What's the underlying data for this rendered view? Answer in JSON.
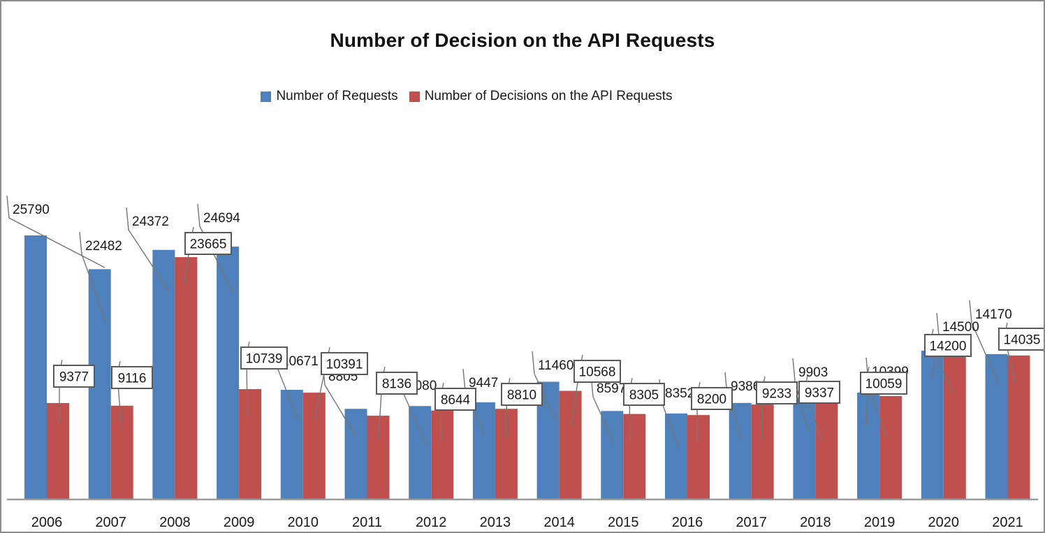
{
  "title": "Number of Decision on the API Requests",
  "legend": [
    {
      "label": "Number of Requests",
      "color": "#4e81bc",
      "swatch": "blue-square"
    },
    {
      "label": "Number of Decisions on the API Requests",
      "color": "#bf504d",
      "swatch": "red-square"
    }
  ],
  "colors": {
    "requests_bar": "#4e81bc",
    "decisions_bar": "#bf504d",
    "axis_line": "#9b9b9b",
    "leader_line": "#757575",
    "label_box_border": "#595959",
    "label_box_fill": "#ffffff",
    "text": "#1a1a1a",
    "frame_border": "#8c8c8c"
  },
  "chart_data": {
    "type": "bar",
    "title": "Number of Decision on the API Requests",
    "categories": [
      "2006",
      "2007",
      "2008",
      "2009",
      "2010",
      "2011",
      "2012",
      "2013",
      "2014",
      "2015",
      "2016",
      "2017",
      "2018",
      "2019",
      "2020",
      "2021"
    ],
    "series": [
      {
        "name": "Number of Requests",
        "color": "#4e81bc",
        "label_style": "plain",
        "values": [
          25790,
          22482,
          24372,
          24694,
          10671,
          8805,
          9080,
          9447,
          11460,
          8597,
          8352,
          9386,
          9903,
          10399,
          14500,
          14170
        ]
      },
      {
        "name": "Number of Decisions on the API Requests",
        "color": "#bf504d",
        "label_style": "boxed-callout",
        "values": [
          9377,
          9116,
          23665,
          10739,
          10391,
          8136,
          8644,
          8810,
          10568,
          8305,
          8200,
          9233,
          9337,
          10059,
          14200,
          14035
        ]
      }
    ],
    "xlabel": "",
    "ylabel": "",
    "ylim": [
      0,
      27000
    ],
    "grid": false,
    "y_axis_visible": false,
    "data_labels": true,
    "legend_position": "top"
  }
}
